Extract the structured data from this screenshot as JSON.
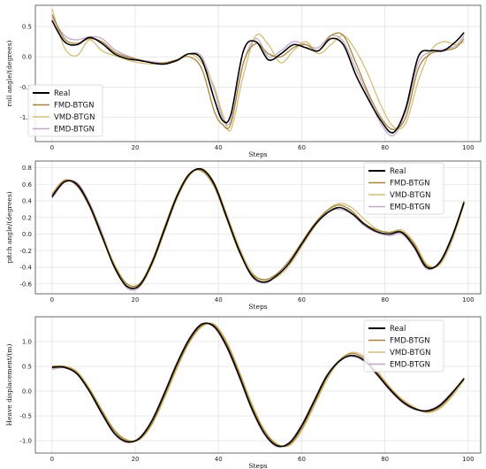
{
  "chart_data": [
    {
      "type": "line",
      "xlabel": "Steps",
      "ylabel": "roll angle/(degrees)",
      "xlim": [
        -4,
        103
      ],
      "ylim": [
        -1.4,
        0.85
      ],
      "xticks": [
        0,
        20,
        40,
        60,
        80,
        100
      ],
      "yticks": [
        -1.0,
        -0.5,
        0.0,
        0.5
      ],
      "grid": true,
      "legend": "left",
      "series": [
        {
          "name": "Real",
          "color": "#000000",
          "x": [
            0,
            3,
            6,
            9,
            12,
            15,
            18,
            21,
            24,
            27,
            30,
            33,
            36,
            39,
            41,
            43,
            46,
            49,
            52,
            55,
            58,
            61,
            64,
            67,
            70,
            73,
            76,
            79,
            82,
            85,
            88,
            91,
            94,
            97,
            99
          ],
          "y": [
            0.6,
            0.25,
            0.2,
            0.32,
            0.22,
            0.05,
            -0.03,
            -0.06,
            -0.1,
            -0.12,
            -0.06,
            0.05,
            -0.05,
            -0.7,
            -1.05,
            -0.95,
            0.1,
            0.25,
            -0.05,
            0.05,
            0.2,
            0.15,
            0.1,
            0.3,
            0.2,
            -0.3,
            -0.7,
            -1.05,
            -1.25,
            -0.85,
            0.0,
            0.1,
            0.1,
            0.25,
            0.4
          ]
        },
        {
          "name": "FMD-BTGN",
          "color": "#a8833a",
          "x": [
            0,
            3,
            6,
            9,
            12,
            15,
            18,
            21,
            24,
            27,
            30,
            33,
            36,
            39,
            41,
            43,
            46,
            49,
            52,
            55,
            58,
            61,
            64,
            67,
            70,
            73,
            76,
            79,
            82,
            85,
            88,
            91,
            94,
            97,
            99
          ],
          "y": [
            0.7,
            0.3,
            0.22,
            0.3,
            0.25,
            0.08,
            0.0,
            -0.05,
            -0.1,
            -0.1,
            -0.05,
            0.0,
            -0.2,
            -0.9,
            -1.12,
            -1.1,
            -0.1,
            0.22,
            0.05,
            0.0,
            0.15,
            0.2,
            0.1,
            0.35,
            0.35,
            -0.1,
            -0.6,
            -1.0,
            -1.2,
            -1.0,
            -0.2,
            0.05,
            0.1,
            0.15,
            0.3
          ]
        },
        {
          "name": "VMD-BTGN",
          "color": "#d4bf78",
          "x": [
            0,
            3,
            6,
            9,
            12,
            15,
            18,
            21,
            24,
            27,
            30,
            33,
            36,
            39,
            41,
            43,
            46,
            49,
            52,
            55,
            58,
            61,
            64,
            67,
            70,
            73,
            76,
            79,
            82,
            85,
            88,
            91,
            94,
            97,
            99
          ],
          "y": [
            0.8,
            0.15,
            0.02,
            0.28,
            0.1,
            0.02,
            -0.05,
            -0.1,
            -0.12,
            -0.1,
            -0.05,
            0.05,
            -0.1,
            -0.5,
            -0.95,
            -1.2,
            -0.3,
            0.35,
            0.2,
            -0.1,
            0.1,
            0.25,
            0.05,
            0.2,
            0.35,
            0.1,
            -0.3,
            -0.8,
            -1.15,
            -1.1,
            -0.4,
            0.1,
            0.25,
            0.2,
            0.25
          ]
        },
        {
          "name": "EMD-BTGN",
          "color": "#c3a8c8",
          "x": [
            0,
            3,
            6,
            9,
            12,
            15,
            18,
            21,
            24,
            27,
            30,
            33,
            36,
            39,
            41,
            43,
            46,
            49,
            52,
            55,
            58,
            61,
            64,
            67,
            70,
            73,
            76,
            79,
            82,
            85,
            88,
            91,
            94,
            97,
            99
          ],
          "y": [
            0.65,
            0.35,
            0.28,
            0.33,
            0.3,
            0.12,
            0.02,
            -0.05,
            -0.08,
            -0.1,
            -0.07,
            0.05,
            0.0,
            -0.55,
            -1.0,
            -1.05,
            -0.1,
            0.3,
            0.0,
            0.1,
            0.25,
            0.2,
            0.15,
            0.35,
            0.25,
            -0.2,
            -0.65,
            -1.1,
            -1.3,
            -0.9,
            -0.1,
            0.08,
            0.12,
            0.18,
            0.35
          ]
        }
      ]
    },
    {
      "type": "line",
      "xlabel": "Steps",
      "ylabel": "pitch angle/(degrees)",
      "xlim": [
        -4,
        103
      ],
      "ylim": [
        -0.72,
        0.88
      ],
      "xticks": [
        0,
        20,
        40,
        60,
        80,
        100
      ],
      "yticks": [
        -0.6,
        -0.4,
        -0.2,
        0.0,
        0.2,
        0.4,
        0.6,
        0.8
      ],
      "grid": true,
      "legend": "top-right",
      "series": [
        {
          "name": "Real",
          "color": "#000000",
          "x": [
            0,
            3,
            6,
            9,
            12,
            15,
            18,
            21,
            24,
            27,
            30,
            33,
            36,
            39,
            42,
            45,
            48,
            51,
            54,
            57,
            60,
            63,
            66,
            69,
            72,
            75,
            78,
            81,
            84,
            87,
            90,
            93,
            96,
            99
          ],
          "y": [
            0.45,
            0.63,
            0.6,
            0.35,
            -0.02,
            -0.4,
            -0.63,
            -0.62,
            -0.35,
            0.05,
            0.45,
            0.72,
            0.78,
            0.6,
            0.2,
            -0.2,
            -0.5,
            -0.58,
            -0.5,
            -0.35,
            -0.12,
            0.1,
            0.25,
            0.32,
            0.25,
            0.12,
            0.03,
            0.0,
            0.02,
            -0.15,
            -0.4,
            -0.35,
            -0.05,
            0.38
          ]
        },
        {
          "name": "FMD-BTGN",
          "color": "#a8833a",
          "x": [
            0,
            3,
            6,
            9,
            12,
            15,
            18,
            21,
            24,
            27,
            30,
            33,
            36,
            39,
            42,
            45,
            48,
            51,
            54,
            57,
            60,
            63,
            66,
            69,
            72,
            75,
            78,
            81,
            84,
            87,
            90,
            93,
            96,
            99
          ],
          "y": [
            0.48,
            0.65,
            0.58,
            0.33,
            -0.04,
            -0.38,
            -0.6,
            -0.6,
            -0.33,
            0.08,
            0.47,
            0.73,
            0.76,
            0.57,
            0.18,
            -0.22,
            -0.48,
            -0.55,
            -0.48,
            -0.32,
            -0.1,
            0.12,
            0.28,
            0.35,
            0.28,
            0.13,
            0.05,
            0.02,
            0.03,
            -0.12,
            -0.38,
            -0.36,
            -0.06,
            0.4
          ]
        },
        {
          "name": "VMD-BTGN",
          "color": "#d4bf78",
          "x": [
            0,
            3,
            6,
            9,
            12,
            15,
            18,
            21,
            24,
            27,
            30,
            33,
            36,
            39,
            42,
            45,
            48,
            51,
            54,
            57,
            60,
            63,
            66,
            69,
            72,
            75,
            78,
            81,
            84,
            87,
            90,
            93,
            96,
            99
          ],
          "y": [
            0.46,
            0.64,
            0.6,
            0.36,
            0.0,
            -0.36,
            -0.6,
            -0.63,
            -0.38,
            0.02,
            0.42,
            0.7,
            0.79,
            0.62,
            0.24,
            -0.16,
            -0.46,
            -0.56,
            -0.52,
            -0.38,
            -0.15,
            0.08,
            0.28,
            0.37,
            0.32,
            0.18,
            0.06,
            0.02,
            0.05,
            -0.1,
            -0.36,
            -0.38,
            -0.1,
            0.36
          ]
        },
        {
          "name": "EMD-BTGN",
          "color": "#c3a8c8",
          "x": [
            0,
            3,
            6,
            9,
            12,
            15,
            18,
            21,
            24,
            27,
            30,
            33,
            36,
            39,
            42,
            45,
            48,
            51,
            54,
            57,
            60,
            63,
            66,
            69,
            72,
            75,
            78,
            81,
            84,
            87,
            90,
            93,
            96,
            99
          ],
          "y": [
            0.43,
            0.62,
            0.62,
            0.38,
            0.02,
            -0.38,
            -0.65,
            -0.64,
            -0.36,
            0.04,
            0.44,
            0.71,
            0.77,
            0.59,
            0.21,
            -0.19,
            -0.51,
            -0.59,
            -0.51,
            -0.34,
            -0.11,
            0.11,
            0.26,
            0.3,
            0.24,
            0.1,
            0.02,
            -0.02,
            0.0,
            -0.17,
            -0.42,
            -0.34,
            -0.03,
            0.39
          ]
        }
      ]
    },
    {
      "type": "line",
      "xlabel": "Steps",
      "ylabel": "Heave  displacement/(m)",
      "xlim": [
        -4,
        103
      ],
      "ylim": [
        -1.25,
        1.5
      ],
      "xticks": [
        0,
        20,
        40,
        60,
        80,
        100
      ],
      "yticks": [
        -1.0,
        -0.5,
        0.0,
        0.5,
        1.0
      ],
      "grid": true,
      "legend": "top-right",
      "series": [
        {
          "name": "Real",
          "color": "#000000",
          "x": [
            0,
            3,
            6,
            9,
            12,
            15,
            18,
            21,
            24,
            27,
            30,
            33,
            36,
            39,
            42,
            45,
            48,
            51,
            54,
            57,
            60,
            63,
            66,
            69,
            72,
            75,
            78,
            81,
            84,
            87,
            90,
            93,
            96,
            99
          ],
          "y": [
            0.48,
            0.48,
            0.35,
            0.0,
            -0.45,
            -0.85,
            -1.02,
            -0.95,
            -0.6,
            -0.05,
            0.55,
            1.05,
            1.35,
            1.3,
            0.9,
            0.3,
            -0.35,
            -0.85,
            -1.1,
            -1.05,
            -0.7,
            -0.2,
            0.3,
            0.6,
            0.72,
            0.62,
            0.35,
            0.05,
            -0.2,
            -0.35,
            -0.4,
            -0.3,
            -0.05,
            0.25
          ]
        },
        {
          "name": "FMD-BTGN",
          "color": "#a8833a",
          "x": [
            0,
            3,
            6,
            9,
            12,
            15,
            18,
            21,
            24,
            27,
            30,
            33,
            36,
            39,
            42,
            45,
            48,
            51,
            54,
            57,
            60,
            63,
            66,
            69,
            72,
            75,
            78,
            81,
            84,
            87,
            90,
            93,
            96,
            99
          ],
          "y": [
            0.5,
            0.5,
            0.37,
            0.03,
            -0.4,
            -0.8,
            -1.0,
            -0.97,
            -0.65,
            -0.1,
            0.5,
            1.0,
            1.32,
            1.33,
            0.95,
            0.36,
            -0.3,
            -0.8,
            -1.08,
            -1.08,
            -0.75,
            -0.25,
            0.27,
            0.62,
            0.76,
            0.66,
            0.38,
            0.08,
            -0.18,
            -0.34,
            -0.42,
            -0.33,
            -0.08,
            0.27
          ]
        },
        {
          "name": "VMD-BTGN",
          "color": "#d4bf78",
          "x": [
            0,
            3,
            6,
            9,
            12,
            15,
            18,
            21,
            24,
            27,
            30,
            33,
            36,
            39,
            42,
            45,
            48,
            51,
            54,
            57,
            60,
            63,
            66,
            69,
            72,
            75,
            78,
            81,
            84,
            87,
            90,
            93,
            96,
            99
          ],
          "y": [
            0.46,
            0.5,
            0.4,
            0.06,
            -0.38,
            -0.78,
            -0.98,
            -0.98,
            -0.68,
            -0.15,
            0.45,
            0.98,
            1.3,
            1.35,
            1.0,
            0.4,
            -0.25,
            -0.78,
            -1.06,
            -1.1,
            -0.8,
            -0.3,
            0.22,
            0.6,
            0.78,
            0.7,
            0.42,
            0.1,
            -0.15,
            -0.32,
            -0.43,
            -0.36,
            -0.12,
            0.22
          ]
        },
        {
          "name": "EMD-BTGN",
          "color": "#c3a8c8",
          "x": [
            0,
            3,
            6,
            9,
            12,
            15,
            18,
            21,
            24,
            27,
            30,
            33,
            36,
            39,
            42,
            45,
            48,
            51,
            54,
            57,
            60,
            63,
            66,
            69,
            72,
            75,
            78,
            81,
            84,
            87,
            90,
            93,
            96,
            99
          ],
          "y": [
            0.44,
            0.47,
            0.34,
            -0.02,
            -0.47,
            -0.87,
            -1.04,
            -0.94,
            -0.58,
            -0.02,
            0.57,
            1.07,
            1.36,
            1.28,
            0.87,
            0.27,
            -0.38,
            -0.87,
            -1.12,
            -1.03,
            -0.67,
            -0.17,
            0.32,
            0.62,
            0.7,
            0.6,
            0.33,
            0.03,
            -0.22,
            -0.37,
            -0.39,
            -0.28,
            -0.03,
            0.26
          ]
        }
      ]
    }
  ]
}
